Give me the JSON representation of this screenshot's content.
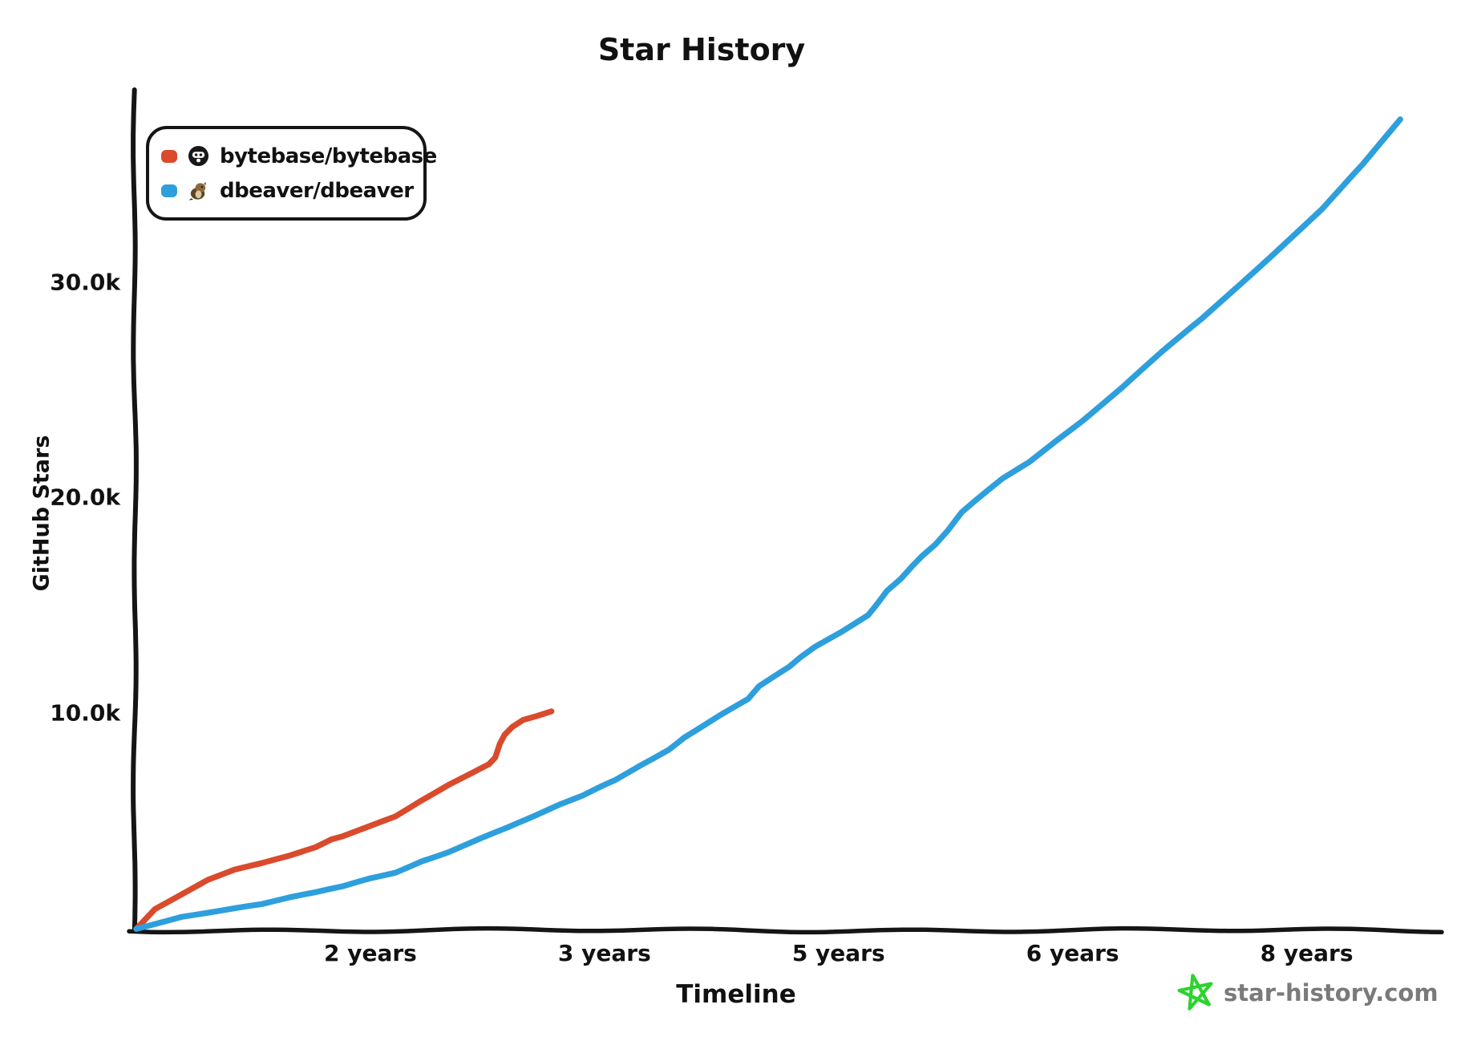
{
  "colors": {
    "background": "#ffffff",
    "text": "#111111",
    "axis": "#151515"
  },
  "watermark": {
    "label": "star-history.com",
    "text_color": "#7a7a7a",
    "star_color": "#2cd32c"
  },
  "chart_data": {
    "type": "line",
    "title": "Star History",
    "xlabel": "Timeline",
    "ylabel": "GitHub Stars",
    "x_unit": "years since repo creation",
    "xlim": [
      0,
      8.35
    ],
    "ylim": [
      0,
      38800
    ],
    "grid": false,
    "legend_position": "top-left",
    "x_ticks": [
      {
        "value": 1.5,
        "label": "2 years"
      },
      {
        "value": 3.0,
        "label": "3 years"
      },
      {
        "value": 4.5,
        "label": "5 years"
      },
      {
        "value": 6.0,
        "label": "6 years"
      },
      {
        "value": 7.5,
        "label": "8 years"
      }
    ],
    "y_ticks": [
      {
        "value": 10000,
        "label": "10.0k"
      },
      {
        "value": 20000,
        "label": "20.0k"
      },
      {
        "value": 30000,
        "label": "30.0k"
      }
    ],
    "series": [
      {
        "name": "bytebase/bytebase",
        "color": "#da4a2c",
        "points": [
          [
            0,
            0
          ],
          [
            0.12,
            930
          ],
          [
            0.29,
            1600
          ],
          [
            0.46,
            2270
          ],
          [
            0.63,
            2720
          ],
          [
            0.81,
            3020
          ],
          [
            0.98,
            3350
          ],
          [
            1.15,
            3760
          ],
          [
            1.25,
            4130
          ],
          [
            1.32,
            4280
          ],
          [
            1.49,
            4770
          ],
          [
            1.66,
            5250
          ],
          [
            1.83,
            6000
          ],
          [
            2.0,
            6700
          ],
          [
            2.21,
            7450
          ],
          [
            2.26,
            7630
          ],
          [
            2.3,
            7930
          ],
          [
            2.33,
            8570
          ],
          [
            2.36,
            8980
          ],
          [
            2.41,
            9350
          ],
          [
            2.48,
            9680
          ],
          [
            2.57,
            9870
          ],
          [
            2.66,
            10090
          ]
        ]
      },
      {
        "name": "dbeaver/dbeaver",
        "color": "#2e9fdd",
        "points": [
          [
            0,
            0
          ],
          [
            0.29,
            560
          ],
          [
            0.46,
            740
          ],
          [
            0.63,
            930
          ],
          [
            0.81,
            1120
          ],
          [
            0.98,
            1420
          ],
          [
            1.15,
            1680
          ],
          [
            1.32,
            1970
          ],
          [
            1.49,
            2350
          ],
          [
            1.66,
            2640
          ],
          [
            1.83,
            3170
          ],
          [
            2.0,
            3580
          ],
          [
            2.21,
            4210
          ],
          [
            2.38,
            4690
          ],
          [
            2.55,
            5210
          ],
          [
            2.72,
            5770
          ],
          [
            2.86,
            6180
          ],
          [
            2.98,
            6630
          ],
          [
            3.07,
            6930
          ],
          [
            3.24,
            7640
          ],
          [
            3.41,
            8310
          ],
          [
            3.51,
            8860
          ],
          [
            3.58,
            9160
          ],
          [
            3.75,
            9910
          ],
          [
            3.92,
            10610
          ],
          [
            3.99,
            11200
          ],
          [
            4.18,
            12100
          ],
          [
            4.26,
            12590
          ],
          [
            4.35,
            13070
          ],
          [
            4.52,
            13780
          ],
          [
            4.69,
            14560
          ],
          [
            4.74,
            15010
          ],
          [
            4.81,
            15680
          ],
          [
            4.9,
            16240
          ],
          [
            4.97,
            16800
          ],
          [
            5.03,
            17240
          ],
          [
            5.12,
            17800
          ],
          [
            5.2,
            18440
          ],
          [
            5.29,
            19290
          ],
          [
            5.38,
            19850
          ],
          [
            5.46,
            20330
          ],
          [
            5.55,
            20860
          ],
          [
            5.72,
            21640
          ],
          [
            5.89,
            22640
          ],
          [
            6.06,
            23580
          ],
          [
            6.32,
            25140
          ],
          [
            6.57,
            26740
          ],
          [
            6.83,
            28310
          ],
          [
            7.09,
            30020
          ],
          [
            7.34,
            31660
          ],
          [
            7.6,
            33370
          ],
          [
            7.86,
            35420
          ],
          [
            8.1,
            37540
          ]
        ]
      }
    ]
  }
}
